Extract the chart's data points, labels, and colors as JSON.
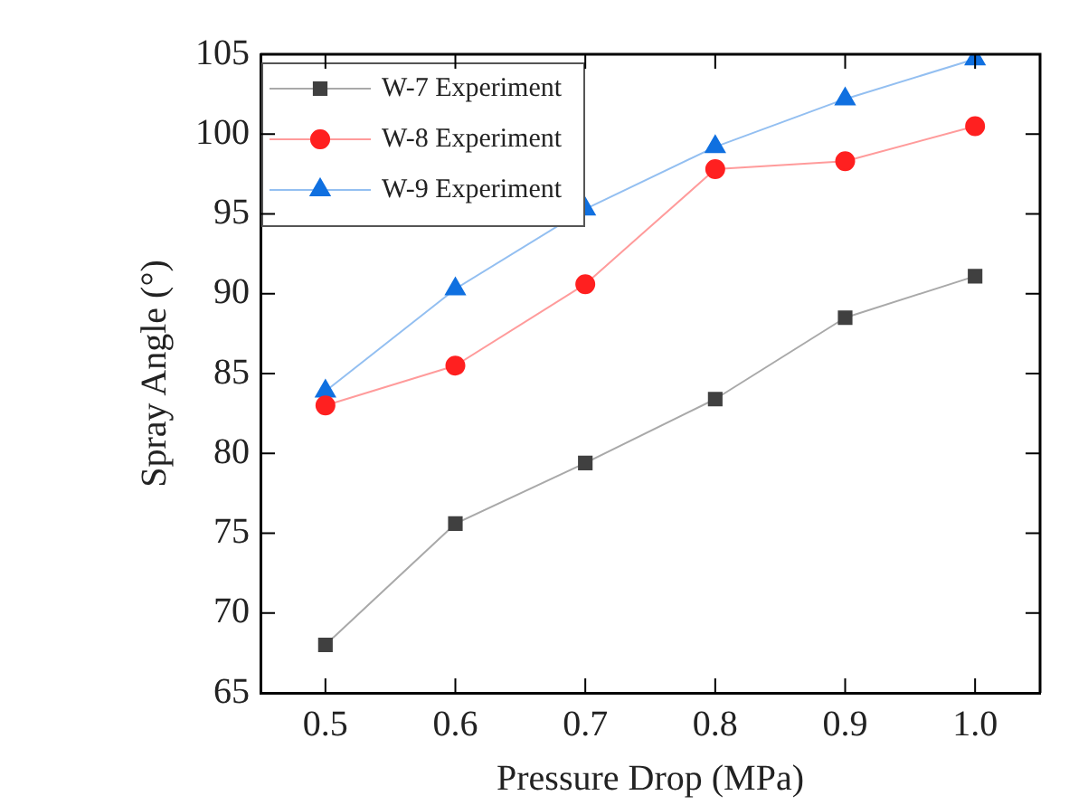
{
  "chart_data": {
    "type": "line",
    "xlabel": "Pressure Drop (MPa)",
    "ylabel": "Spray Angle (°)",
    "x": [
      0.5,
      0.6,
      0.7,
      0.8,
      0.9,
      1.0
    ],
    "xlim": [
      0.45,
      1.05
    ],
    "xticks": [
      {
        "value": 0.5,
        "label": "0.5"
      },
      {
        "value": 0.6,
        "label": "0.6"
      },
      {
        "value": 0.7,
        "label": "0.7"
      },
      {
        "value": 0.8,
        "label": "0.8"
      },
      {
        "value": 0.9,
        "label": "0.9"
      },
      {
        "value": 1.0,
        "label": "1.0"
      }
    ],
    "ylim": [
      65,
      105
    ],
    "yticks": [
      65,
      70,
      75,
      80,
      85,
      90,
      95,
      100,
      105
    ],
    "grid": false,
    "legend": "top left",
    "line_style": "solid",
    "series": [
      {
        "name": "W-7 Experiment",
        "color": "#404040",
        "marker": "square",
        "values": [
          68.0,
          75.6,
          79.4,
          83.4,
          88.5,
          91.1
        ]
      },
      {
        "name": "W-8 Experiment",
        "color": "#ff2020",
        "marker": "circle",
        "values": [
          83.0,
          85.5,
          90.6,
          97.8,
          98.3,
          100.5
        ]
      },
      {
        "name": "W-9 Experiment",
        "color": "#1070e0",
        "marker": "triangle",
        "values": [
          83.9,
          90.3,
          95.3,
          99.2,
          102.2,
          104.7
        ]
      }
    ]
  }
}
